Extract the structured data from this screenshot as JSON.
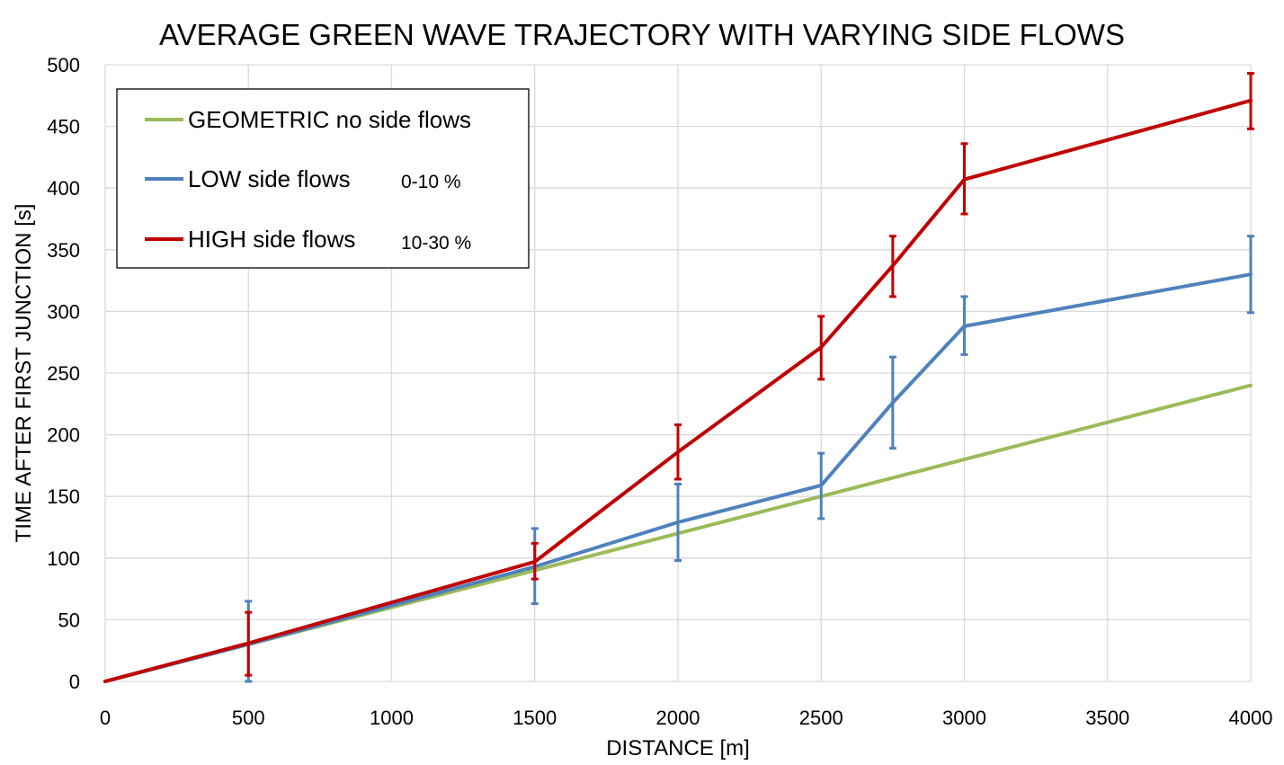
{
  "chart_data": {
    "type": "line",
    "title": "AVERAGE GREEN WAVE TRAJECTORY WITH VARYING SIDE FLOWS",
    "xlabel": "DISTANCE [m]",
    "ylabel": "TIME AFTER FIRST JUNCTION [s]",
    "xlim": [
      0,
      4000
    ],
    "ylim": [
      0,
      500
    ],
    "x_ticks": [
      "0",
      "500",
      "1000",
      "1500",
      "2000",
      "2500",
      "3000",
      "3500",
      "4000"
    ],
    "y_ticks": [
      "0",
      "50",
      "100",
      "150",
      "200",
      "250",
      "300",
      "350",
      "400",
      "450",
      "500"
    ],
    "grid": true,
    "legend_position": "top-left",
    "series": [
      {
        "name": "GEOMETRIC no side flows",
        "range": "",
        "color": "#9BBB59",
        "points": [
          {
            "x": 0,
            "y": 0
          },
          {
            "x": 4000,
            "y": 240
          }
        ]
      },
      {
        "name": "LOW side flows",
        "range": "0-10 %",
        "color": "#4F81BD",
        "points": [
          {
            "x": 0,
            "y": 0
          },
          {
            "x": 500,
            "y": 30,
            "err_low": 0,
            "err_high": 65
          },
          {
            "x": 1500,
            "y": 93,
            "err_low": 63,
            "err_high": 124
          },
          {
            "x": 2000,
            "y": 129,
            "err_low": 98,
            "err_high": 160
          },
          {
            "x": 2500,
            "y": 159,
            "err_low": 132,
            "err_high": 185
          },
          {
            "x": 2750,
            "y": 226,
            "err_low": 189,
            "err_high": 263
          },
          {
            "x": 3000,
            "y": 288,
            "err_low": 265,
            "err_high": 312
          },
          {
            "x": 4000,
            "y": 330,
            "err_low": 299,
            "err_high": 361
          }
        ]
      },
      {
        "name": "HIGH side flows",
        "range": "10-30 %",
        "color": "#C00000",
        "points": [
          {
            "x": 0,
            "y": 0
          },
          {
            "x": 500,
            "y": 31,
            "err_low": 5,
            "err_high": 56
          },
          {
            "x": 1500,
            "y": 97,
            "err_low": 83,
            "err_high": 112
          },
          {
            "x": 2000,
            "y": 186,
            "err_low": 164,
            "err_high": 208
          },
          {
            "x": 2500,
            "y": 271,
            "err_low": 245,
            "err_high": 296
          },
          {
            "x": 2750,
            "y": 337,
            "err_low": 312,
            "err_high": 361
          },
          {
            "x": 3000,
            "y": 407,
            "err_low": 379,
            "err_high": 436
          },
          {
            "x": 4000,
            "y": 471,
            "err_low": 448,
            "err_high": 493
          }
        ]
      }
    ]
  }
}
